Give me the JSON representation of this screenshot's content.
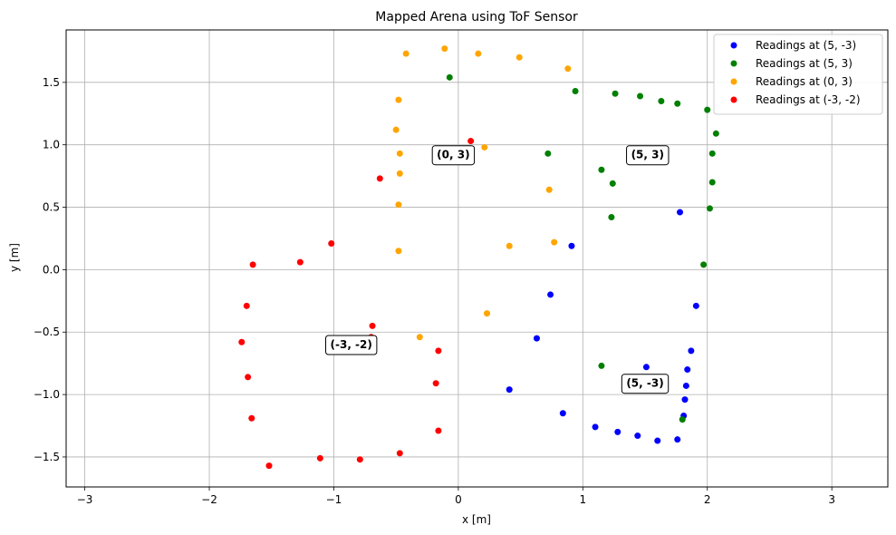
{
  "chart_data": {
    "type": "scatter",
    "title": "Mapped Arena using ToF Sensor",
    "xlabel": "x [m]",
    "ylabel": "y [m]",
    "xlim": [
      -3.15,
      3.45
    ],
    "ylim": [
      -1.74,
      1.92
    ],
    "xticks": [
      -3,
      -2,
      -1,
      0,
      1,
      2,
      3
    ],
    "yticks": [
      -1.5,
      -1.0,
      -0.5,
      0.0,
      0.5,
      1.0,
      1.5
    ],
    "xtick_labels": [
      "−3",
      "−2",
      "−1",
      "0",
      "1",
      "2",
      "3"
    ],
    "ytick_labels": [
      "−1.5",
      "−1.0",
      "−0.5",
      "0.0",
      "0.5",
      "1.0",
      "1.5"
    ],
    "grid": true,
    "legend_position": "top-right",
    "series": [
      {
        "name": "Readings at (5, -3)",
        "color": "#0000ff",
        "points": [
          [
            0.91,
            0.19
          ],
          [
            0.74,
            -0.2
          ],
          [
            0.63,
            -0.55
          ],
          [
            0.41,
            -0.96
          ],
          [
            0.84,
            -1.15
          ],
          [
            1.1,
            -1.26
          ],
          [
            1.28,
            -1.3
          ],
          [
            1.44,
            -1.33
          ],
          [
            1.6,
            -1.37
          ],
          [
            1.76,
            -1.36
          ],
          [
            1.81,
            -1.17
          ],
          [
            1.82,
            -1.04
          ],
          [
            1.83,
            -0.93
          ],
          [
            1.84,
            -0.8
          ],
          [
            1.87,
            -0.65
          ],
          [
            1.91,
            -0.29
          ],
          [
            1.51,
            -0.78
          ],
          [
            1.78,
            0.46
          ]
        ]
      },
      {
        "name": "Readings at (5, 3)",
        "color": "#008000",
        "points": [
          [
            -0.07,
            1.54
          ],
          [
            0.94,
            1.43
          ],
          [
            1.26,
            1.41
          ],
          [
            1.46,
            1.39
          ],
          [
            1.63,
            1.35
          ],
          [
            1.76,
            1.33
          ],
          [
            2.0,
            1.28
          ],
          [
            2.07,
            1.09
          ],
          [
            2.04,
            0.93
          ],
          [
            2.04,
            0.7
          ],
          [
            2.02,
            0.49
          ],
          [
            1.97,
            0.04
          ],
          [
            0.72,
            0.93
          ],
          [
            1.15,
            0.8
          ],
          [
            1.24,
            0.69
          ],
          [
            1.23,
            0.42
          ],
          [
            1.15,
            -0.77
          ],
          [
            1.8,
            -1.2
          ]
        ]
      },
      {
        "name": "Readings at (0, 3)",
        "color": "#ffa500",
        "points": [
          [
            -0.42,
            1.73
          ],
          [
            -0.11,
            1.77
          ],
          [
            0.16,
            1.73
          ],
          [
            0.49,
            1.7
          ],
          [
            0.88,
            1.61
          ],
          [
            -0.48,
            1.36
          ],
          [
            -0.5,
            1.12
          ],
          [
            -0.47,
            0.93
          ],
          [
            -0.47,
            0.77
          ],
          [
            -0.48,
            0.52
          ],
          [
            -0.48,
            0.15
          ],
          [
            0.21,
            0.98
          ],
          [
            0.73,
            0.64
          ],
          [
            0.77,
            0.22
          ],
          [
            0.41,
            0.19
          ],
          [
            0.23,
            -0.35
          ],
          [
            -0.31,
            -0.54
          ]
        ]
      },
      {
        "name": "Readings at (-3, -2)",
        "color": "#ff0000",
        "points": [
          [
            0.1,
            1.03
          ],
          [
            -0.63,
            0.73
          ],
          [
            -1.02,
            0.21
          ],
          [
            -1.27,
            0.06
          ],
          [
            -1.65,
            0.04
          ],
          [
            -1.7,
            -0.29
          ],
          [
            -1.74,
            -0.58
          ],
          [
            -1.69,
            -0.86
          ],
          [
            -1.66,
            -1.19
          ],
          [
            -1.52,
            -1.57
          ],
          [
            -1.11,
            -1.51
          ],
          [
            -0.79,
            -1.52
          ],
          [
            -0.47,
            -1.47
          ],
          [
            -0.16,
            -1.29
          ],
          [
            -0.18,
            -0.91
          ],
          [
            -0.16,
            -0.65
          ],
          [
            -0.69,
            -0.45
          ],
          [
            -0.7,
            -0.54
          ]
        ]
      }
    ],
    "annotations": [
      {
        "text": "(0, 3)",
        "x": -0.04,
        "y": 0.92
      },
      {
        "text": "(5, 3)",
        "x": 1.52,
        "y": 0.92
      },
      {
        "text": "(-3, -2)",
        "x": -0.86,
        "y": -0.6
      },
      {
        "text": "(5, -3)",
        "x": 1.5,
        "y": -0.91
      }
    ]
  }
}
